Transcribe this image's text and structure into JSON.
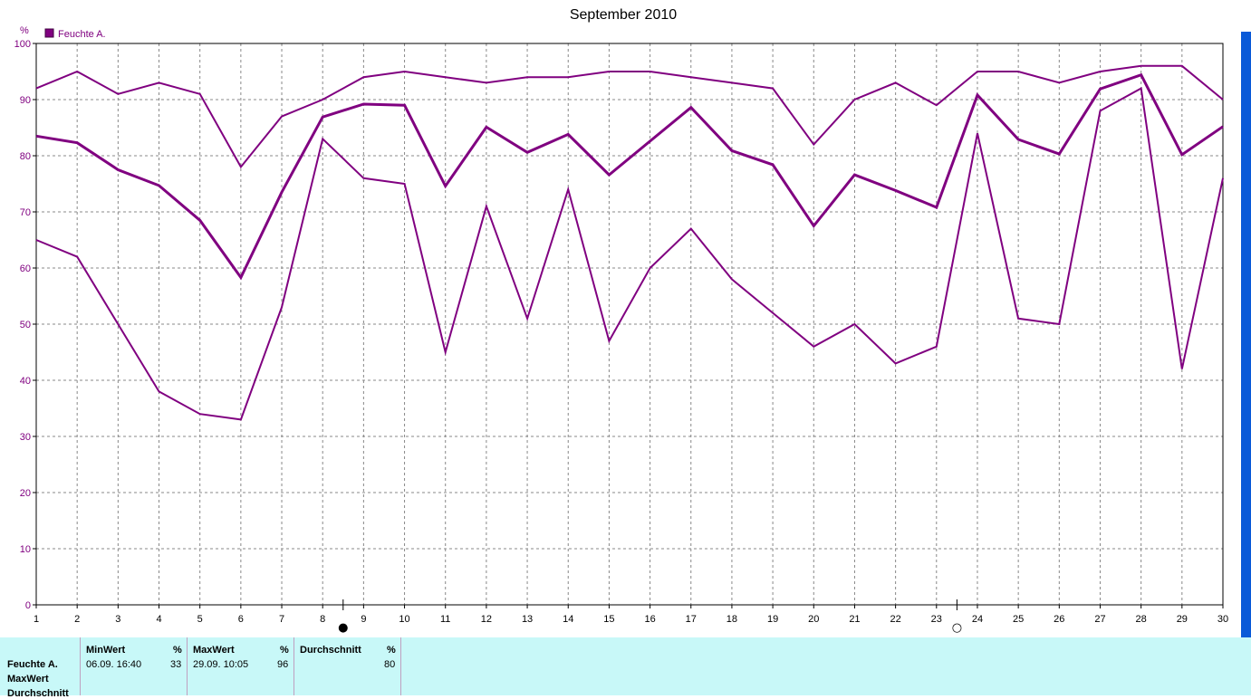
{
  "chart_data": {
    "type": "line",
    "title": "September 2010",
    "ylabel": "%",
    "ylim": [
      0,
      100
    ],
    "y_ticks": [
      0,
      10,
      20,
      30,
      40,
      50,
      60,
      70,
      80,
      90,
      100
    ],
    "x": [
      1,
      2,
      3,
      4,
      5,
      6,
      7,
      8,
      9,
      10,
      11,
      12,
      13,
      14,
      15,
      16,
      17,
      18,
      19,
      20,
      21,
      22,
      23,
      24,
      25,
      26,
      27,
      28,
      29,
      30
    ],
    "grid": true,
    "legend": [
      "Feuchte A."
    ],
    "legend_position": "top-left",
    "color": "#800080",
    "series": [
      {
        "values": [
          92,
          95,
          91,
          93,
          91,
          78,
          87,
          90,
          94,
          95,
          94,
          93,
          94,
          94,
          95,
          95,
          94,
          93,
          92,
          82,
          90,
          93,
          89,
          95,
          95,
          93,
          95,
          96,
          96,
          90
        ]
      },
      {
        "values": [
          83.5,
          82.3,
          77.5,
          74.7,
          68.5,
          58.3,
          73.5,
          86.9,
          89.2,
          89.0,
          74.6,
          85.1,
          80.6,
          83.8,
          76.6,
          82.6,
          88.6,
          80.9,
          78.4,
          67.5,
          76.6,
          73.8,
          70.8,
          90.8,
          82.9,
          80.3,
          91.9,
          94.4,
          80.2,
          85.2
        ],
        "bold": true
      },
      {
        "values": [
          65,
          62,
          50,
          38,
          34,
          33,
          53,
          83,
          76,
          75,
          45,
          71,
          51,
          74,
          47,
          60,
          67,
          58,
          52,
          46,
          50,
          43,
          46,
          84,
          51,
          50,
          88,
          92,
          42,
          76
        ]
      }
    ],
    "markers": [
      {
        "symbol": "●",
        "x": 8.5
      },
      {
        "symbol": "○",
        "x": 23.5
      }
    ]
  },
  "stats": {
    "row_labels": [
      "Feuchte A.",
      "MaxWert",
      "Durchschnitt"
    ],
    "min": {
      "header": "MinWert",
      "unit": "%",
      "datetime": "06.09.  16:40",
      "value": "33"
    },
    "max": {
      "header": "MaxWert",
      "unit": "%",
      "datetime": "29.09.  10:05",
      "value": "96"
    },
    "avg": {
      "header": "Durchschnitt",
      "unit": "%",
      "value": "80"
    }
  }
}
